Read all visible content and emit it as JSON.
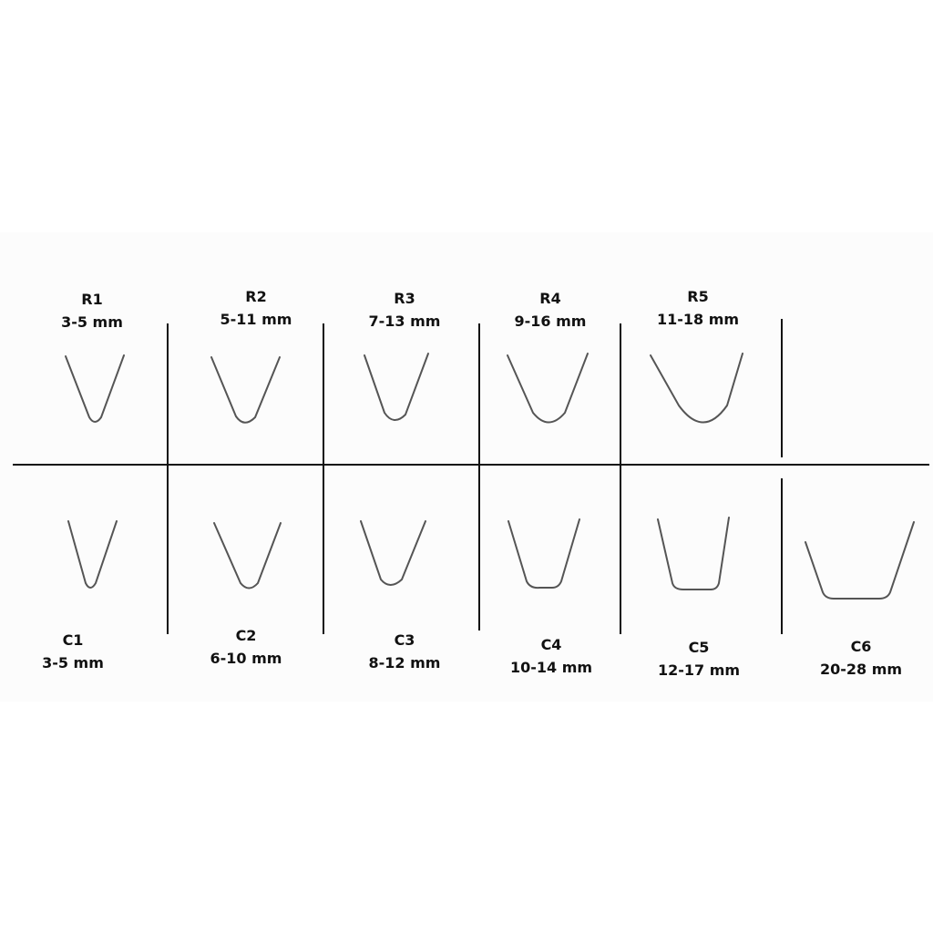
{
  "top_row": [
    {
      "code": "R1",
      "range": "3-5 mm"
    },
    {
      "code": "R2",
      "range": "5-11 mm"
    },
    {
      "code": "R3",
      "range": "7-13 mm"
    },
    {
      "code": "R4",
      "range": "9-16 mm"
    },
    {
      "code": "R5",
      "range": "11-18 mm"
    }
  ],
  "bottom_row": [
    {
      "code": "C1",
      "range": "3-5 mm"
    },
    {
      "code": "C2",
      "range": "6-10 mm"
    },
    {
      "code": "C3",
      "range": "8-12 mm"
    },
    {
      "code": "C4",
      "range": "10-14 mm"
    },
    {
      "code": "C5",
      "range": "12-17 mm"
    },
    {
      "code": "C6",
      "range": "20-28 mm"
    }
  ],
  "colors": {
    "line": "#111111",
    "wire": "#555555",
    "background": "#fcfcfc"
  }
}
